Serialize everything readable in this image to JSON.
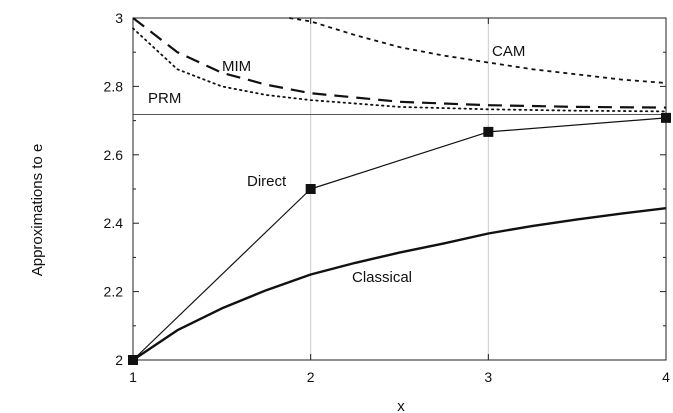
{
  "chart_data": {
    "type": "line",
    "xlabel": "x",
    "ylabel": "Approximations to e",
    "xlim": [
      1,
      4
    ],
    "ylim": [
      2,
      3
    ],
    "x_ticks": [
      "1",
      "2",
      "3",
      "4"
    ],
    "y_ticks": [
      "2",
      "2.2",
      "2.4",
      "2.6",
      "2.8",
      "3"
    ],
    "reference_line": {
      "y": 2.718
    },
    "series": [
      {
        "name": "CAM",
        "style": "dashed-fine",
        "x": [
          1.88,
          2.0,
          2.25,
          2.5,
          2.75,
          3.0,
          3.25,
          3.5,
          3.75,
          4.0
        ],
        "y": [
          3.0,
          2.99,
          2.95,
          2.915,
          2.89,
          2.87,
          2.85,
          2.835,
          2.82,
          2.81
        ]
      },
      {
        "name": "MIM",
        "style": "dashed-long",
        "x": [
          1.0,
          1.25,
          1.5,
          1.75,
          2.0,
          2.5,
          3.0,
          3.5,
          4.0
        ],
        "y": [
          3.0,
          2.9,
          2.84,
          2.805,
          2.78,
          2.755,
          2.745,
          2.74,
          2.738
        ]
      },
      {
        "name": "PRM",
        "style": "dotted",
        "x": [
          1.0,
          1.25,
          1.5,
          1.75,
          2.0,
          2.5,
          3.0,
          3.5,
          4.0
        ],
        "y": [
          2.97,
          2.85,
          2.8,
          2.775,
          2.76,
          2.74,
          2.733,
          2.729,
          2.727
        ]
      },
      {
        "name": "Direct",
        "style": "solid-thin-markers",
        "x": [
          1,
          2,
          3,
          4
        ],
        "y": [
          2.0,
          2.5,
          2.667,
          2.708
        ]
      },
      {
        "name": "Classical",
        "style": "solid-thick",
        "x": [
          1.0,
          1.25,
          1.5,
          1.75,
          2.0,
          2.25,
          2.5,
          2.75,
          3.0,
          3.25,
          3.5,
          3.75,
          4.0
        ],
        "y": [
          2.0,
          2.087,
          2.151,
          2.204,
          2.25,
          2.284,
          2.314,
          2.341,
          2.37,
          2.392,
          2.411,
          2.428,
          2.444
        ]
      }
    ],
    "colors": {
      "line": "#111111",
      "grid": "#cccccc",
      "reference": "#555555"
    }
  }
}
